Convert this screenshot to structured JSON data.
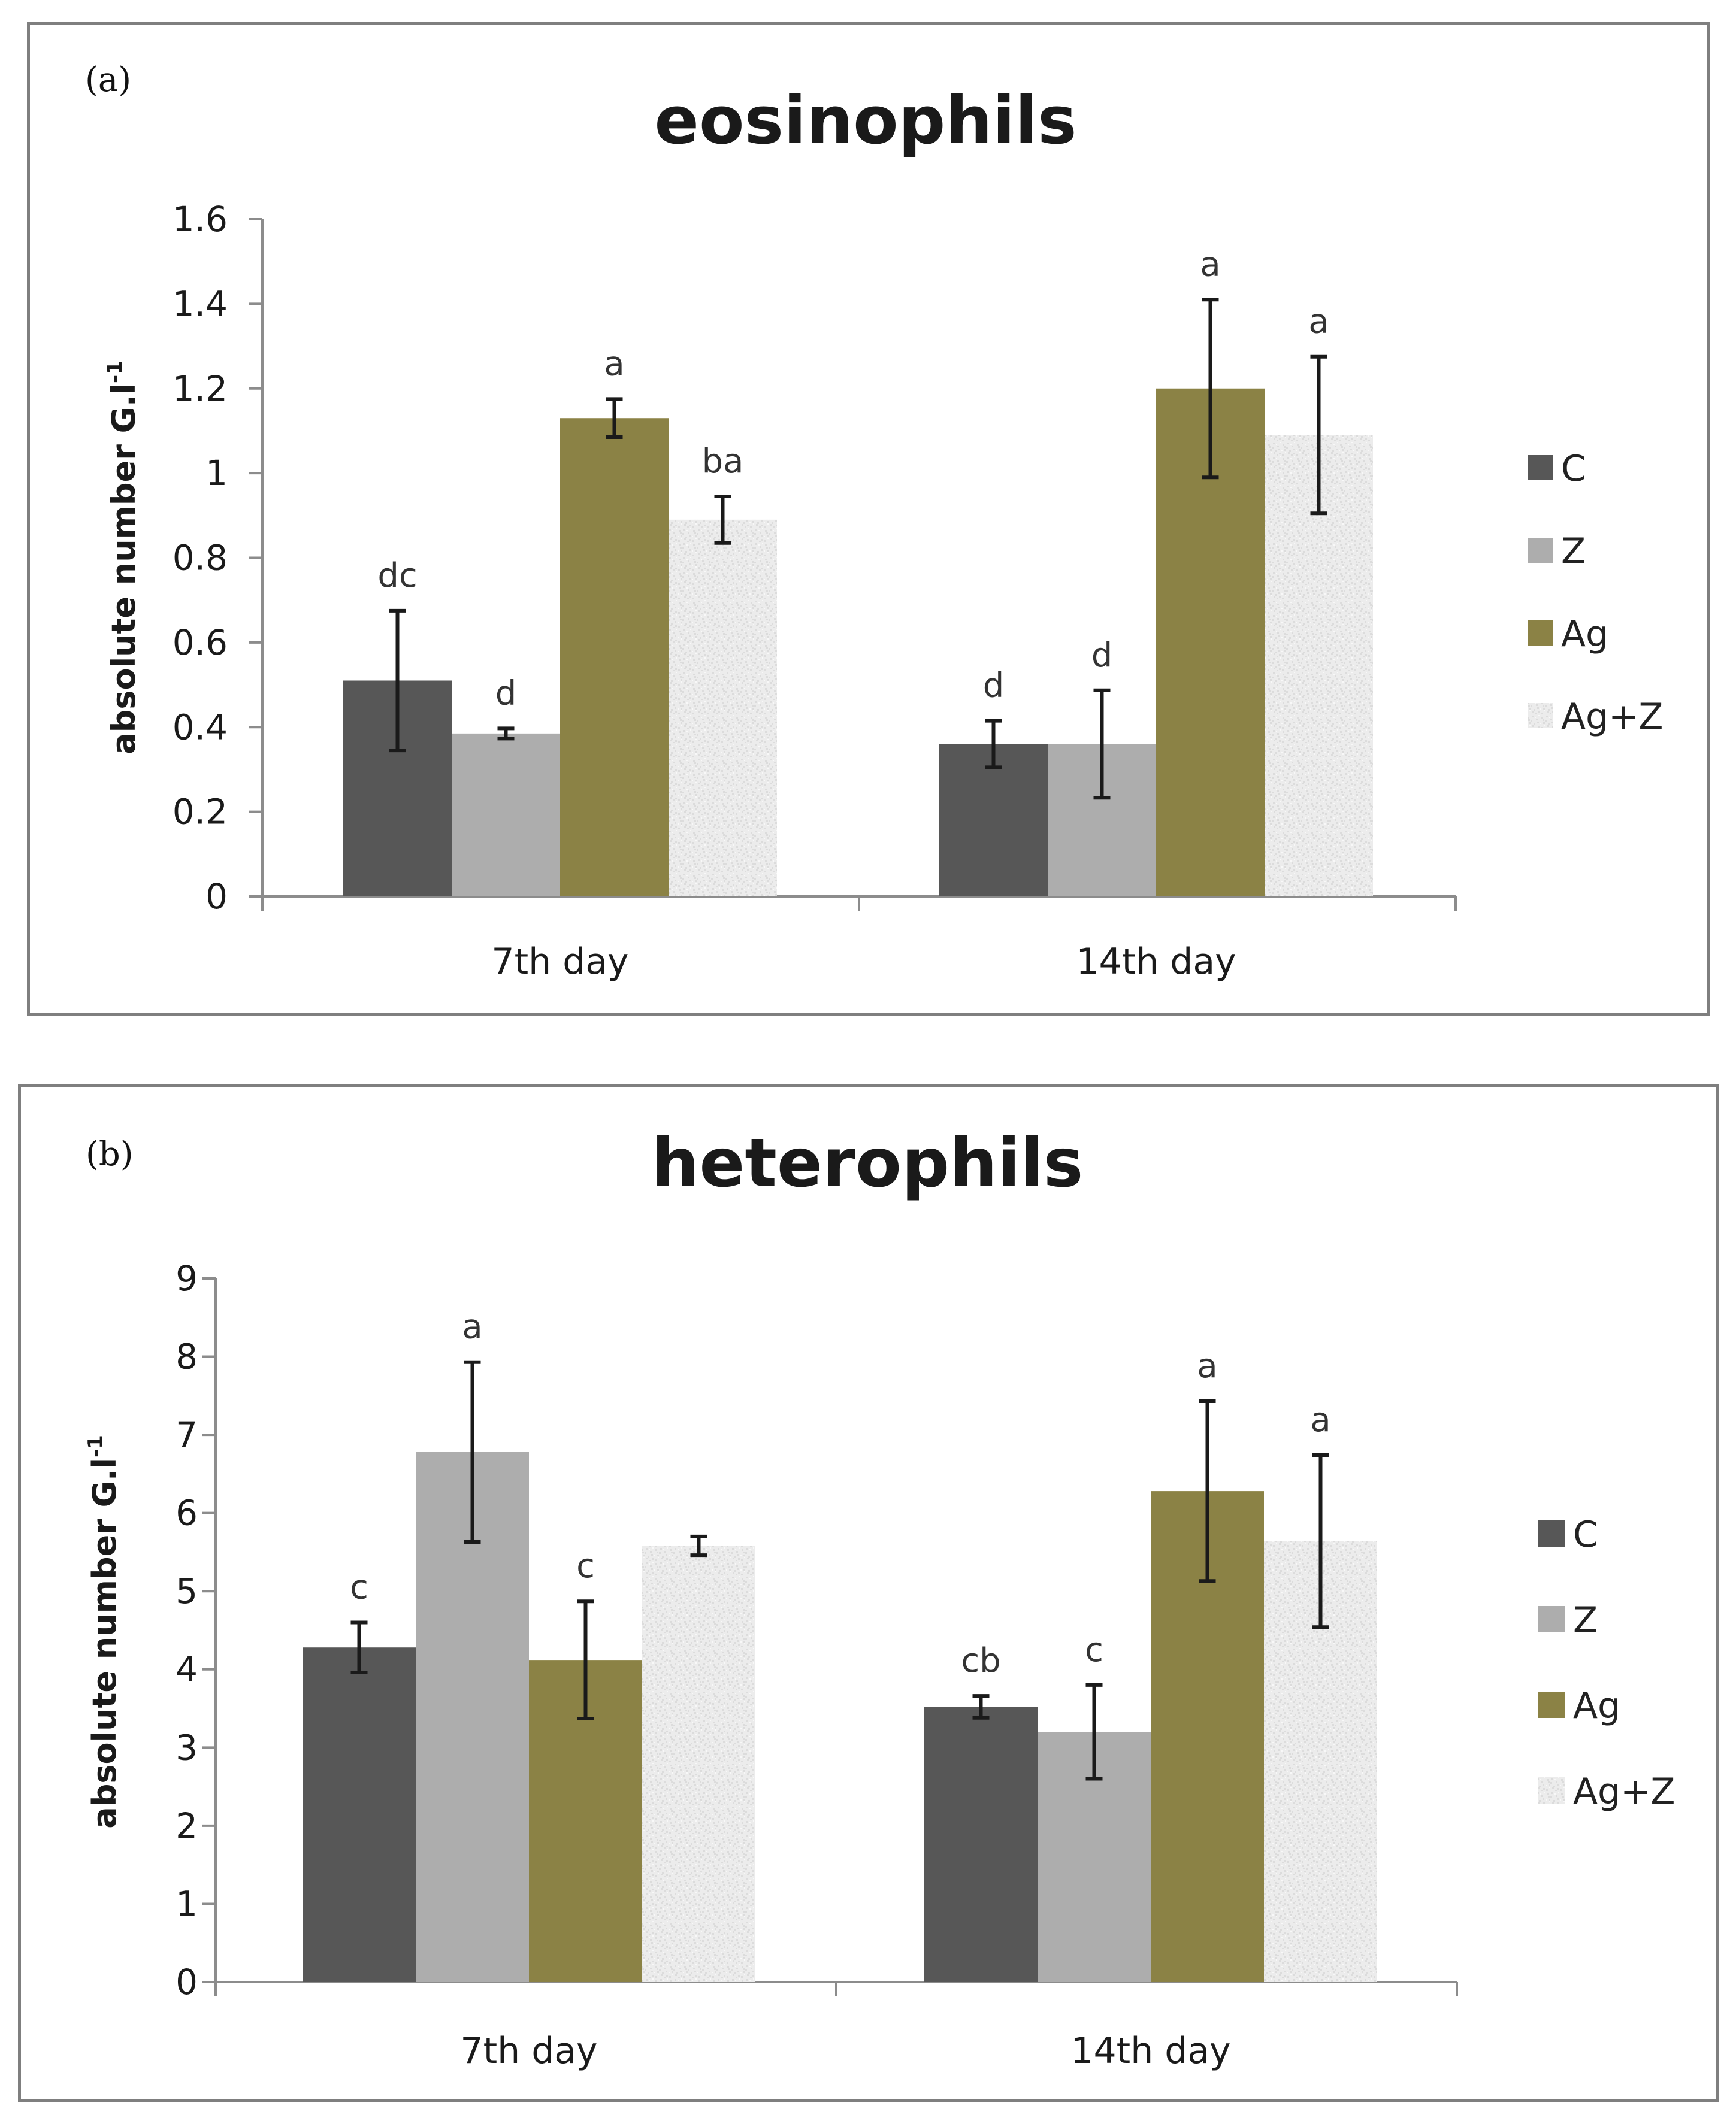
{
  "panels": [
    {
      "letter": "(a)"
    },
    {
      "letter": "(b)"
    }
  ],
  "colors": {
    "C": "#575757",
    "Z": "#adadad",
    "Ag": "#8b8245",
    "Ag+Z": "#ececec",
    "axis": "#8c8c8c",
    "error": "#1a1a1a"
  },
  "chart_data": [
    {
      "type": "bar",
      "title": "eosinophils",
      "ylabel": "absolute number G.l",
      "ylabel_sup": "-1",
      "xlabel": "",
      "categories": [
        "7th day",
        "14th day"
      ],
      "ylim": [
        0,
        1.6
      ],
      "yticks": [
        0,
        0.2,
        0.4,
        0.6,
        0.8,
        1,
        1.2,
        1.4,
        1.6
      ],
      "ytick_labels": [
        "0",
        "0.2",
        "0.4",
        "0.6",
        "0.8",
        "1",
        "1.2",
        "1.4",
        "1.6"
      ],
      "legend_position": "right",
      "series": [
        {
          "name": "C",
          "values": [
            0.51,
            0.36
          ],
          "errors": [
            0.165,
            0.055
          ],
          "labels": [
            "dc",
            "d"
          ]
        },
        {
          "name": "Z",
          "values": [
            0.385,
            0.36
          ],
          "errors": [
            0.012,
            0.127
          ],
          "labels": [
            "d",
            "d"
          ]
        },
        {
          "name": "Ag",
          "values": [
            1.13,
            1.2
          ],
          "errors": [
            0.045,
            0.21
          ],
          "labels": [
            "a",
            "a"
          ]
        },
        {
          "name": "Ag+Z",
          "values": [
            0.89,
            1.09
          ],
          "errors": [
            0.055,
            0.185
          ],
          "labels": [
            "ba",
            "a"
          ]
        }
      ]
    },
    {
      "type": "bar",
      "title": "heterophils",
      "ylabel": "absolute number G.l",
      "ylabel_sup": "-1",
      "xlabel": "",
      "categories": [
        "7th day",
        "14th day"
      ],
      "ylim": [
        0,
        9
      ],
      "yticks": [
        0,
        1,
        2,
        3,
        4,
        5,
        6,
        7,
        8,
        9
      ],
      "ytick_labels": [
        "0",
        "1",
        "2",
        "3",
        "4",
        "5",
        "6",
        "7",
        "8",
        "9"
      ],
      "legend_position": "right",
      "series": [
        {
          "name": "C",
          "values": [
            4.28,
            3.52
          ],
          "errors": [
            0.32,
            0.14
          ],
          "labels": [
            "c",
            "cb"
          ]
        },
        {
          "name": "Z",
          "values": [
            6.78,
            3.2
          ],
          "errors": [
            1.15,
            0.6
          ],
          "labels": [
            "a",
            "c"
          ]
        },
        {
          "name": "Ag",
          "values": [
            4.12,
            6.28
          ],
          "errors": [
            0.75,
            1.15
          ],
          "labels": [
            "c",
            "a"
          ]
        },
        {
          "name": "Ag+Z",
          "values": [
            5.58,
            5.64
          ],
          "errors": [
            0.12,
            1.1
          ],
          "labels": [
            "",
            "a"
          ]
        }
      ]
    }
  ]
}
